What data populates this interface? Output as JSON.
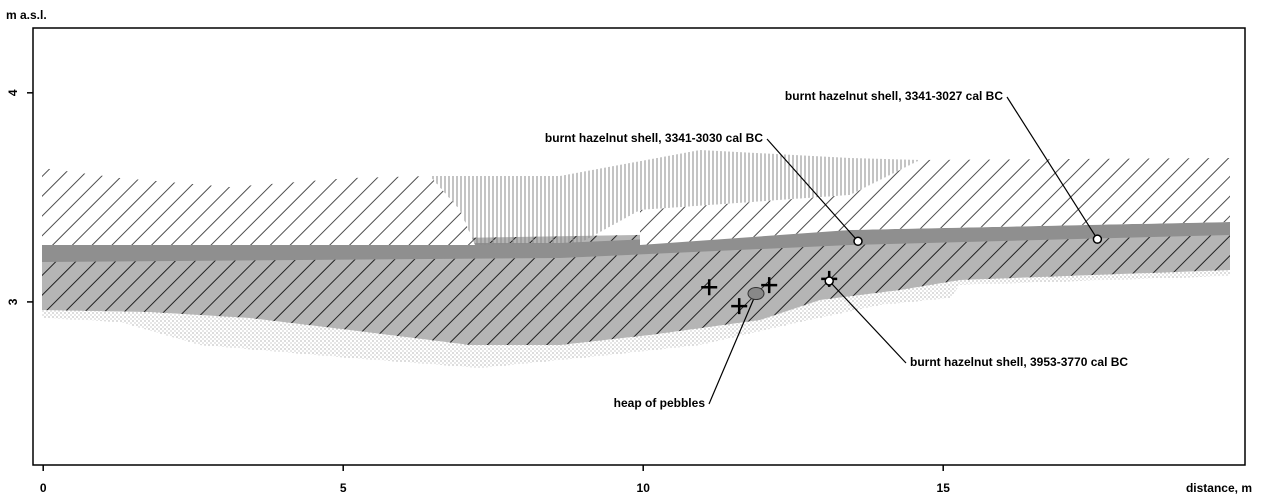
{
  "chart_data": {
    "type": "section",
    "y_label": "m a.s.l.",
    "x_label": "distance, m",
    "xlim": [
      -0.17,
      20.03
    ],
    "ylim": [
      2.22,
      4.31
    ],
    "xticks": [
      0,
      5,
      10,
      15
    ],
    "yticks": [
      3,
      4
    ],
    "annotations": [
      {
        "text": "burnt hazelnut shell, 3341-3027 cal BC",
        "x": 17.57,
        "y": 3.3
      },
      {
        "text": "burnt hazelnut shell, 3341-3030 cal BC",
        "x": 13.58,
        "y": 3.29
      },
      {
        "text": "burnt hazelnut shell, 3953-3770 cal BC",
        "x": 13.1,
        "y": 3.1
      },
      {
        "text": "heap of pebbles",
        "x": 11.88,
        "y": 3.04
      }
    ],
    "crosses": [
      {
        "x": 11.1,
        "y": 3.07
      },
      {
        "x": 11.6,
        "y": 2.98
      },
      {
        "x": 12.1,
        "y": 3.08
      },
      {
        "x": 13.1,
        "y": 3.11
      }
    ]
  }
}
